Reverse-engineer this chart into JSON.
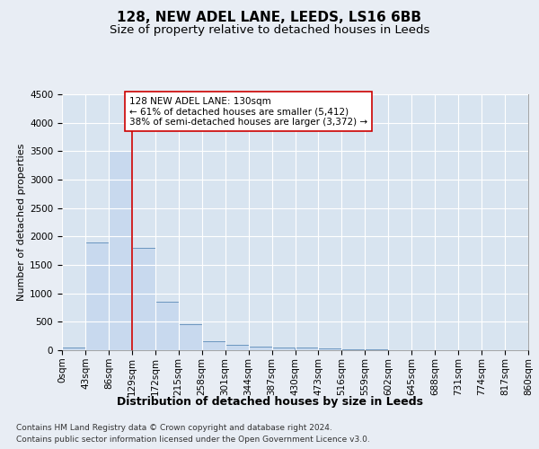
{
  "title": "128, NEW ADEL LANE, LEEDS, LS16 6BB",
  "subtitle": "Size of property relative to detached houses in Leeds",
  "xlabel": "Distribution of detached houses by size in Leeds",
  "ylabel": "Number of detached properties",
  "footer_line1": "Contains HM Land Registry data © Crown copyright and database right 2024.",
  "footer_line2": "Contains public sector information licensed under the Open Government Licence v3.0.",
  "annotation_line1": "128 NEW ADEL LANE: 130sqm",
  "annotation_line2": "← 61% of detached houses are smaller (5,412)",
  "annotation_line3": "38% of semi-detached houses are larger (3,372) →",
  "bar_edges": [
    0,
    43,
    86,
    129,
    172,
    215,
    258,
    301,
    344,
    387,
    430,
    473,
    516,
    559,
    602,
    645,
    688,
    731,
    774,
    817,
    860
  ],
  "bar_heights": [
    50,
    1900,
    3500,
    1800,
    850,
    460,
    165,
    100,
    70,
    55,
    40,
    30,
    20,
    10,
    5,
    3,
    2,
    2,
    1,
    1
  ],
  "bar_color": "#c8d9ee",
  "bar_edge_color": "#5a8ab8",
  "vline_x": 129,
  "vline_color": "#cc0000",
  "ylim": [
    0,
    4500
  ],
  "yticks": [
    0,
    500,
    1000,
    1500,
    2000,
    2500,
    3000,
    3500,
    4000,
    4500
  ],
  "bg_color": "#e8edf4",
  "plot_bg_color": "#d8e4f0",
  "grid_color": "#ffffff",
  "title_fontsize": 11,
  "subtitle_fontsize": 9.5,
  "ylabel_fontsize": 8,
  "xlabel_fontsize": 9,
  "tick_fontsize": 7.5,
  "annotation_fontsize": 7.5,
  "footer_fontsize": 6.5
}
